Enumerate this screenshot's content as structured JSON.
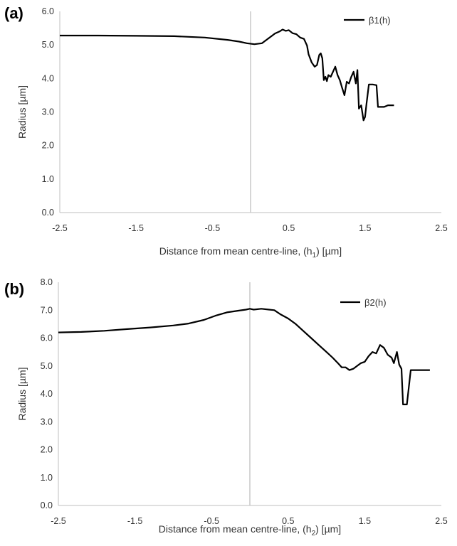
{
  "chart_data": [
    {
      "type": "line",
      "panel_label": "(a)",
      "xlabel": "Distance from mean centre-line, (h",
      "xlabel_subscript": "1",
      "xlabel_suffix": ") [µm]",
      "ylabel": "Radius [µm]",
      "xlim": [
        -2.5,
        2.5
      ],
      "ylim": [
        0.0,
        6.0
      ],
      "x_ticks": [
        "-2.5",
        "-1.5",
        "-0.5",
        "0.5",
        "1.5",
        "2.5"
      ],
      "y_ticks": [
        "0.0",
        "1.0",
        "2.0",
        "3.0",
        "4.0",
        "5.0",
        "6.0"
      ],
      "legend": "top-right",
      "series": [
        {
          "name": "β1(h)",
          "color": "#000000",
          "x": [
            -2.5,
            -2.0,
            -1.5,
            -1.0,
            -0.6,
            -0.3,
            -0.15,
            -0.05,
            0.05,
            0.15,
            0.25,
            0.32,
            0.38,
            0.42,
            0.46,
            0.5,
            0.55,
            0.6,
            0.65,
            0.7,
            0.74,
            0.76,
            0.8,
            0.84,
            0.87,
            0.9,
            0.92,
            0.94,
            0.96,
            0.98,
            1.0,
            1.02,
            1.05,
            1.08,
            1.11,
            1.14,
            1.17,
            1.2,
            1.23,
            1.26,
            1.29,
            1.32,
            1.35,
            1.38,
            1.4,
            1.42,
            1.45,
            1.48,
            1.5,
            1.52,
            1.55,
            1.6,
            1.65,
            1.67,
            1.7,
            1.75,
            1.8,
            1.88
          ],
          "values": [
            5.28,
            5.28,
            5.27,
            5.26,
            5.22,
            5.15,
            5.1,
            5.05,
            5.02,
            5.05,
            5.22,
            5.34,
            5.4,
            5.46,
            5.42,
            5.44,
            5.35,
            5.32,
            5.22,
            5.18,
            4.98,
            4.72,
            4.48,
            4.35,
            4.4,
            4.7,
            4.75,
            4.6,
            3.95,
            4.05,
            3.92,
            4.1,
            4.05,
            4.2,
            4.35,
            4.1,
            3.95,
            3.72,
            3.5,
            3.9,
            3.85,
            4.05,
            4.2,
            3.85,
            4.25,
            3.1,
            3.2,
            2.75,
            2.85,
            3.25,
            3.82,
            3.82,
            3.8,
            3.15,
            3.15,
            3.15,
            3.2,
            3.2
          ]
        }
      ]
    },
    {
      "type": "line",
      "panel_label": "(b)",
      "xlabel": "Distance from mean centre-line, (h",
      "xlabel_subscript": "2",
      "xlabel_suffix": ") [µm]",
      "ylabel": "Radius [µm]",
      "xlim": [
        -2.5,
        2.5
      ],
      "ylim": [
        0.0,
        8.0
      ],
      "x_ticks": [
        "-2.5",
        "-1.5",
        "-0.5",
        "0.5",
        "1.5",
        "2.5"
      ],
      "y_ticks": [
        "0.0",
        "1.0",
        "2.0",
        "3.0",
        "4.0",
        "5.0",
        "6.0",
        "7.0",
        "8.0"
      ],
      "legend": "top-right",
      "series": [
        {
          "name": "β2(h)",
          "color": "#000000",
          "x": [
            -2.5,
            -2.2,
            -1.9,
            -1.6,
            -1.3,
            -1.0,
            -0.8,
            -0.6,
            -0.45,
            -0.3,
            -0.15,
            -0.05,
            0.0,
            0.05,
            0.15,
            0.25,
            0.32,
            0.4,
            0.5,
            0.6,
            0.7,
            0.8,
            0.9,
            1.0,
            1.08,
            1.15,
            1.2,
            1.25,
            1.3,
            1.35,
            1.4,
            1.45,
            1.5,
            1.55,
            1.6,
            1.65,
            1.7,
            1.75,
            1.8,
            1.85,
            1.88,
            1.92,
            1.95,
            1.98,
            2.0,
            2.05,
            2.1,
            2.2,
            2.3,
            2.35
          ],
          "values": [
            6.2,
            6.22,
            6.26,
            6.32,
            6.38,
            6.45,
            6.52,
            6.65,
            6.8,
            6.92,
            6.98,
            7.02,
            7.05,
            7.02,
            7.05,
            7.02,
            7.0,
            6.85,
            6.7,
            6.5,
            6.25,
            6.0,
            5.75,
            5.5,
            5.3,
            5.1,
            4.95,
            4.95,
            4.85,
            4.9,
            5.0,
            5.1,
            5.15,
            5.35,
            5.5,
            5.45,
            5.75,
            5.65,
            5.4,
            5.3,
            5.1,
            5.5,
            5.05,
            4.9,
            3.62,
            3.62,
            4.85,
            4.85,
            4.85,
            4.85
          ]
        }
      ]
    }
  ]
}
